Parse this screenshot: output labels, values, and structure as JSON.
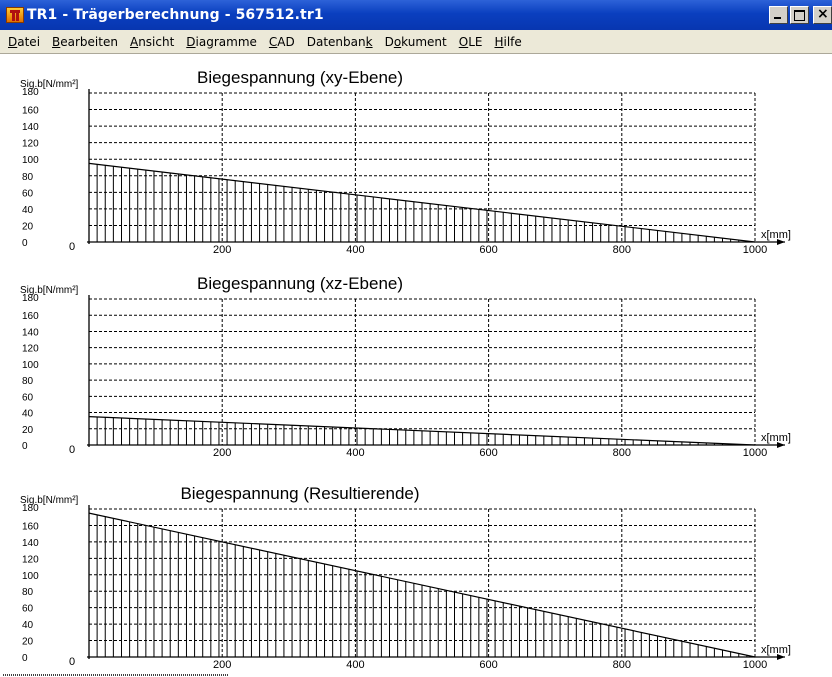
{
  "window": {
    "title": "TR1 - Trägerberechnung - 567512.tr1",
    "icon": "tr1-app-icon"
  },
  "menu": [
    {
      "pre": "",
      "u": "D",
      "post": "atei"
    },
    {
      "pre": "",
      "u": "B",
      "post": "earbeiten"
    },
    {
      "pre": "",
      "u": "A",
      "post": "nsicht"
    },
    {
      "pre": "",
      "u": "D",
      "post": "iagramme"
    },
    {
      "pre": "",
      "u": "C",
      "post": "AD"
    },
    {
      "pre": "Datenban",
      "u": "k",
      "post": ""
    },
    {
      "pre": "D",
      "u": "o",
      "post": "kument"
    },
    {
      "pre": "",
      "u": "O",
      "post": "LE"
    },
    {
      "pre": "",
      "u": "H",
      "post": "ilfe"
    }
  ],
  "chart_data": [
    {
      "type": "area",
      "title": "Biegespannung (xy-Ebene)",
      "ylabel": "Sig.b[N/mm²]",
      "xlabel": "x[mm]",
      "x_origin_label": "0",
      "ylim": [
        0,
        180
      ],
      "xlim": [
        0,
        1000
      ],
      "yticks": [
        0,
        20,
        40,
        60,
        80,
        100,
        120,
        140,
        160,
        180
      ],
      "xticks": [
        200,
        400,
        600,
        800,
        1000
      ],
      "x": [
        0,
        1000
      ],
      "values": [
        95,
        0
      ],
      "grid": true
    },
    {
      "type": "area",
      "title": "Biegespannung (xz-Ebene)",
      "ylabel": "Sig.b[N/mm²]",
      "xlabel": "x[mm]",
      "x_origin_label": "0",
      "ylim": [
        0,
        180
      ],
      "xlim": [
        0,
        1000
      ],
      "yticks": [
        0,
        20,
        40,
        60,
        80,
        100,
        120,
        140,
        160,
        180
      ],
      "xticks": [
        200,
        400,
        600,
        800,
        1000
      ],
      "x": [
        0,
        1000
      ],
      "values": [
        35,
        0
      ],
      "grid": true
    },
    {
      "type": "area",
      "title": "Biegespannung (Resultierende)",
      "ylabel": "Sig.b[N/mm²]",
      "xlabel": "x[mm]",
      "x_origin_label": "0",
      "ylim": [
        0,
        180
      ],
      "xlim": [
        0,
        1000
      ],
      "yticks": [
        0,
        20,
        40,
        60,
        80,
        100,
        120,
        140,
        160,
        180
      ],
      "xticks": [
        200,
        400,
        600,
        800,
        1000
      ],
      "x": [
        0,
        1000
      ],
      "values": [
        175,
        0
      ],
      "grid": true
    }
  ]
}
